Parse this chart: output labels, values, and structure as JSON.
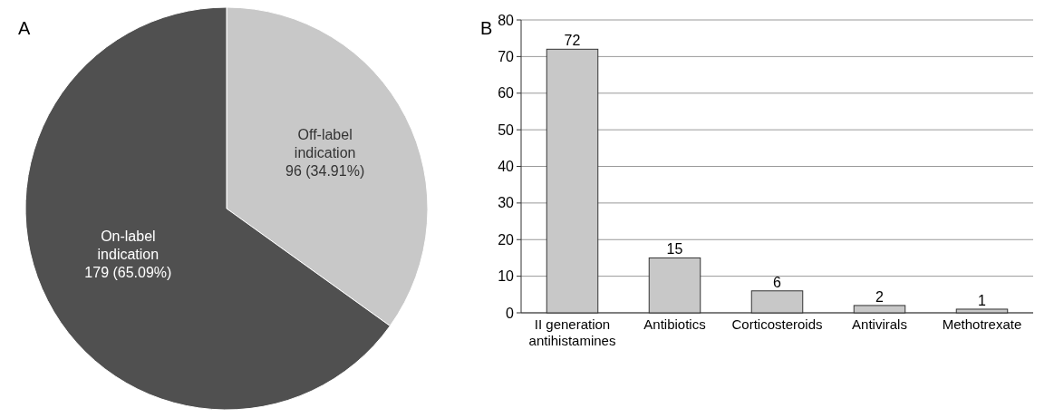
{
  "chart_data": [
    {
      "type": "pie",
      "title": "A",
      "categories": [
        "Off-label indication",
        "On-label indication"
      ],
      "values": [
        96,
        179
      ],
      "value_labels": [
        "96 (34.91%)",
        "179 (65.09%)"
      ],
      "colors": [
        "#c8c8c8",
        "#505050"
      ]
    },
    {
      "type": "bar",
      "title": "B",
      "categories": [
        "II generation antihistamines",
        "Antibiotics",
        "Corticosteroids",
        "Antivirals",
        "Methotrexate"
      ],
      "values": [
        72,
        15,
        6,
        2,
        1
      ],
      "color": "#c8c8c8",
      "ylim": [
        0,
        80
      ],
      "yticks": [
        0,
        10,
        20,
        30,
        40,
        50,
        60,
        70,
        80
      ],
      "grid": "y",
      "data_labels": true
    }
  ]
}
